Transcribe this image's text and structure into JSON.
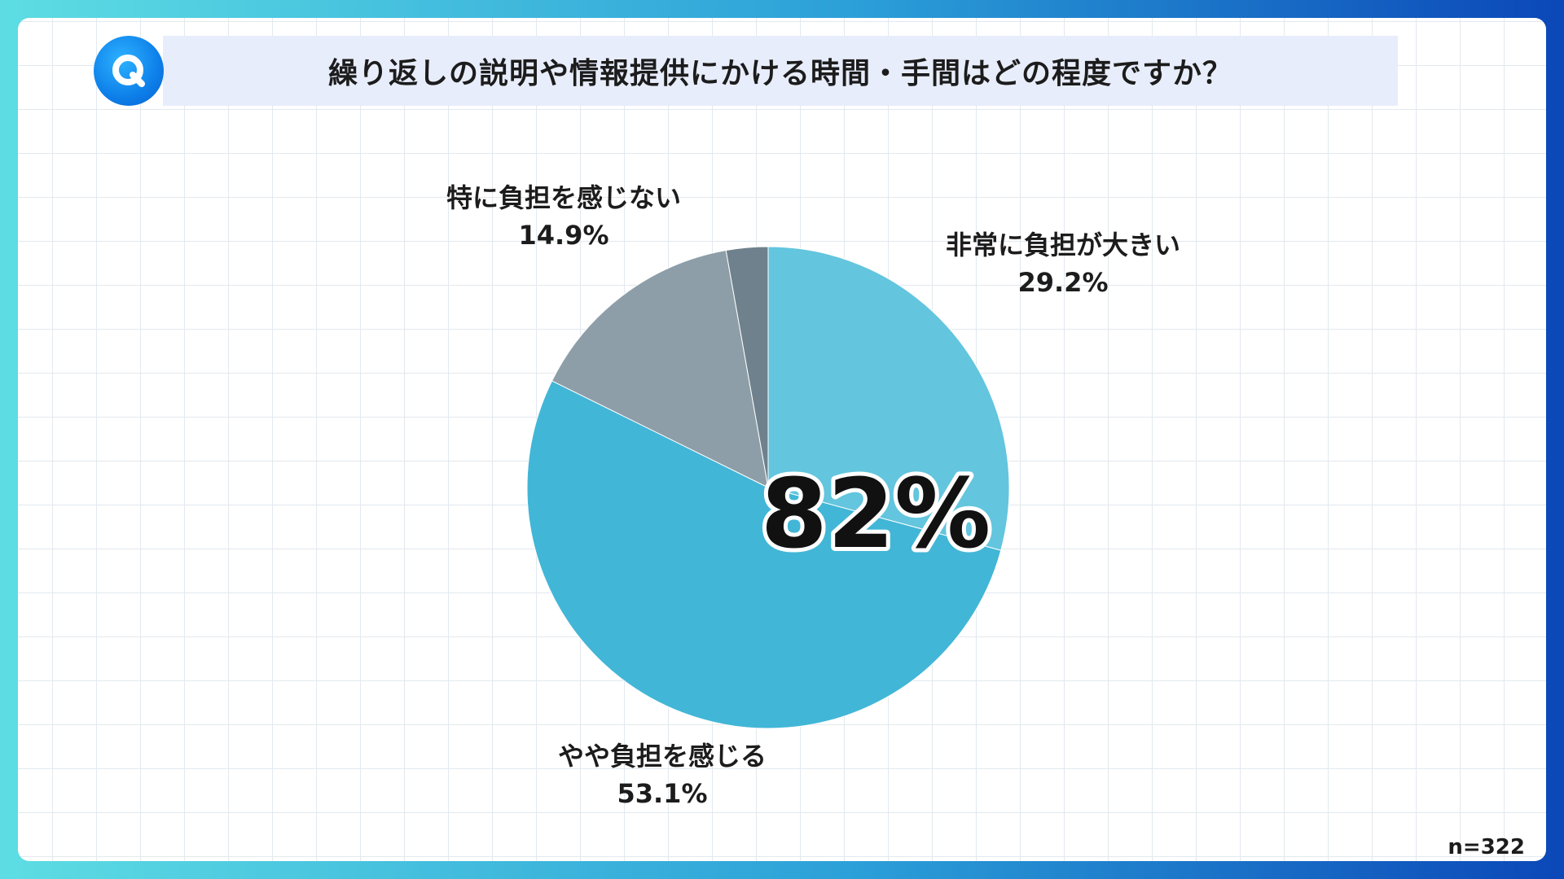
{
  "question": {
    "icon": "q-icon",
    "icon_letter": "Q",
    "title": "繰り返しの説明や情報提供にかける時間・手間はどの程度ですか？"
  },
  "highlight": "82%",
  "sample_size": "n=322",
  "colors": {
    "very_heavy": "#63c5de",
    "somewhat": "#42b6d7",
    "not_really": "#8d9ea8",
    "other": "#6f818c"
  },
  "chart_data": {
    "type": "pie",
    "title": "繰り返しの説明や情報提供にかける時間・手間はどの程度ですか？",
    "start": "12 o'clock, clockwise",
    "slices": [
      {
        "label": "非常に負担が大きい",
        "value": 29.2,
        "value_text": "29.2%",
        "color": "#63c5de"
      },
      {
        "label": "やや負担を感じる",
        "value": 53.1,
        "value_text": "53.1%",
        "color": "#42b6d7"
      },
      {
        "label": "特に負担を感じない",
        "value": 14.9,
        "value_text": "14.9%",
        "color": "#8d9ea8"
      },
      {
        "label": "",
        "value": 2.8,
        "value_text": "",
        "color": "#6f818c"
      }
    ]
  }
}
